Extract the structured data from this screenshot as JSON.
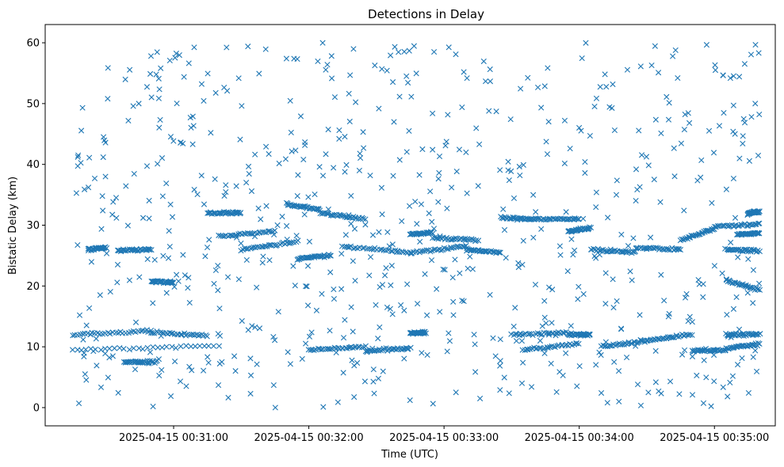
{
  "chart_data": {
    "type": "scatter",
    "title": "Detections in Delay",
    "xlabel": "Time (UTC)",
    "ylabel": "Bistatic Delay (km)",
    "marker": "x",
    "color": "#1f77b4",
    "grid": false,
    "x_range": [
      "2025-04-15 00:30:03",
      "2025-04-15 00:35:27"
    ],
    "ylim": [
      -3,
      63
    ],
    "xtick_labels": [
      "2025-04-15 00:31:00",
      "2025-04-15 00:32:00",
      "2025-04-15 00:33:00",
      "2025-04-15 00:34:00",
      "2025-04-15 00:35:00"
    ],
    "ytick_labels": [
      "0",
      "10",
      "20",
      "30",
      "40",
      "50",
      "60"
    ],
    "time_start": "2025-04-15 00:30:15",
    "time_end": "2025-04-15 00:35:20",
    "delay_min": 0,
    "delay_max": 60,
    "tracks": [
      {
        "t_start": "2025-04-15 00:30:15",
        "t_end": "2025-04-15 00:30:50",
        "delay_start": 12.0,
        "delay_end": 12.5
      },
      {
        "t_start": "2025-04-15 00:30:50",
        "t_end": "2025-04-15 00:31:15",
        "delay_start": 12.4,
        "delay_end": 11.8
      },
      {
        "t_start": "2025-04-15 00:30:15",
        "t_end": "2025-04-15 00:31:20",
        "delay_start": 9.5,
        "delay_end": 10.2
      },
      {
        "t_start": "2025-04-15 00:30:38",
        "t_end": "2025-04-15 00:30:52",
        "delay_start": 7.5,
        "delay_end": 7.5
      },
      {
        "t_start": "2025-04-15 00:30:22",
        "t_end": "2025-04-15 00:30:30",
        "delay_start": 26.0,
        "delay_end": 26.3
      },
      {
        "t_start": "2025-04-15 00:30:35",
        "t_end": "2025-04-15 00:30:50",
        "delay_start": 25.8,
        "delay_end": 26.0
      },
      {
        "t_start": "2025-04-15 00:30:50",
        "t_end": "2025-04-15 00:31:00",
        "delay_start": 20.8,
        "delay_end": 20.6
      },
      {
        "t_start": "2025-04-15 00:31:15",
        "t_end": "2025-04-15 00:31:30",
        "delay_start": 32.0,
        "delay_end": 32.0
      },
      {
        "t_start": "2025-04-15 00:31:20",
        "t_end": "2025-04-15 00:31:45",
        "delay_start": 28.2,
        "delay_end": 29.0
      },
      {
        "t_start": "2025-04-15 00:31:30",
        "t_end": "2025-04-15 00:31:55",
        "delay_start": 26.0,
        "delay_end": 27.3
      },
      {
        "t_start": "2025-04-15 00:31:50",
        "t_end": "2025-04-15 00:32:05",
        "delay_start": 33.5,
        "delay_end": 32.5
      },
      {
        "t_start": "2025-04-15 00:32:05",
        "t_end": "2025-04-15 00:32:25",
        "delay_start": 32.0,
        "delay_end": 31.0
      },
      {
        "t_start": "2025-04-15 00:31:55",
        "t_end": "2025-04-15 00:32:10",
        "delay_start": 24.5,
        "delay_end": 25.0
      },
      {
        "t_start": "2025-04-15 00:32:15",
        "t_end": "2025-04-15 00:32:45",
        "delay_start": 26.5,
        "delay_end": 25.5
      },
      {
        "t_start": "2025-04-15 00:32:45",
        "t_end": "2025-04-15 00:33:10",
        "delay_start": 25.5,
        "delay_end": 26.5
      },
      {
        "t_start": "2025-04-15 00:32:45",
        "t_end": "2025-04-15 00:32:55",
        "delay_start": 28.5,
        "delay_end": 28.8
      },
      {
        "t_start": "2025-04-15 00:32:55",
        "t_end": "2025-04-15 00:33:15",
        "delay_start": 28.0,
        "delay_end": 27.5
      },
      {
        "t_start": "2025-04-15 00:32:00",
        "t_end": "2025-04-15 00:32:25",
        "delay_start": 9.5,
        "delay_end": 10.0
      },
      {
        "t_start": "2025-04-15 00:32:25",
        "t_end": "2025-04-15 00:32:45",
        "delay_start": 9.3,
        "delay_end": 9.8
      },
      {
        "t_start": "2025-04-15 00:32:45",
        "t_end": "2025-04-15 00:32:52",
        "delay_start": 12.3,
        "delay_end": 12.3
      },
      {
        "t_start": "2025-04-15 00:33:10",
        "t_end": "2025-04-15 00:33:25",
        "delay_start": 26.0,
        "delay_end": 25.5
      },
      {
        "t_start": "2025-04-15 00:33:25",
        "t_end": "2025-04-15 00:33:40",
        "delay_start": 31.2,
        "delay_end": 31.0
      },
      {
        "t_start": "2025-04-15 00:33:40",
        "t_end": "2025-04-15 00:34:00",
        "delay_start": 31.0,
        "delay_end": 31.0
      },
      {
        "t_start": "2025-04-15 00:33:55",
        "t_end": "2025-04-15 00:34:05",
        "delay_start": 29.0,
        "delay_end": 29.5
      },
      {
        "t_start": "2025-04-15 00:33:30",
        "t_end": "2025-04-15 00:33:55",
        "delay_start": 12.0,
        "delay_end": 12.3
      },
      {
        "t_start": "2025-04-15 00:33:35",
        "t_end": "2025-04-15 00:34:00",
        "delay_start": 9.5,
        "delay_end": 10.5
      },
      {
        "t_start": "2025-04-15 00:33:55",
        "t_end": "2025-04-15 00:34:05",
        "delay_start": 12.0,
        "delay_end": 12.0
      },
      {
        "t_start": "2025-04-15 00:34:10",
        "t_end": "2025-04-15 00:34:30",
        "delay_start": 10.0,
        "delay_end": 11.0
      },
      {
        "t_start": "2025-04-15 00:34:30",
        "t_end": "2025-04-15 00:34:50",
        "delay_start": 11.0,
        "delay_end": 12.0
      },
      {
        "t_start": "2025-04-15 00:34:50",
        "t_end": "2025-04-15 00:35:05",
        "delay_start": 9.4,
        "delay_end": 9.4
      },
      {
        "t_start": "2025-04-15 00:34:05",
        "t_end": "2025-04-15 00:34:25",
        "delay_start": 26.0,
        "delay_end": 25.5
      },
      {
        "t_start": "2025-04-15 00:34:25",
        "t_end": "2025-04-15 00:34:45",
        "delay_start": 26.3,
        "delay_end": 26.0
      },
      {
        "t_start": "2025-04-15 00:34:45",
        "t_end": "2025-04-15 00:35:00",
        "delay_start": 27.5,
        "delay_end": 29.5
      },
      {
        "t_start": "2025-04-15 00:35:00",
        "t_end": "2025-04-15 00:35:20",
        "delay_start": 29.8,
        "delay_end": 30.2
      },
      {
        "t_start": "2025-04-15 00:35:05",
        "t_end": "2025-04-15 00:35:20",
        "delay_start": 12.0,
        "delay_end": 12.0
      },
      {
        "t_start": "2025-04-15 00:35:05",
        "t_end": "2025-04-15 00:35:20",
        "delay_start": 9.7,
        "delay_end": 10.5
      },
      {
        "t_start": "2025-04-15 00:35:05",
        "t_end": "2025-04-15 00:35:20",
        "delay_start": 26.0,
        "delay_end": 25.8
      },
      {
        "t_start": "2025-04-15 00:35:15",
        "t_end": "2025-04-15 00:35:20",
        "delay_start": 32.0,
        "delay_end": 32.2
      },
      {
        "t_start": "2025-04-15 00:35:10",
        "t_end": "2025-04-15 00:35:20",
        "delay_start": 28.5,
        "delay_end": 28.7
      },
      {
        "t_start": "2025-04-15 00:35:05",
        "t_end": "2025-04-15 00:35:20",
        "delay_start": 21.0,
        "delay_end": 19.3
      }
    ],
    "track_points": 32,
    "scattered_points": 700,
    "point_count_estimate": 1700
  }
}
